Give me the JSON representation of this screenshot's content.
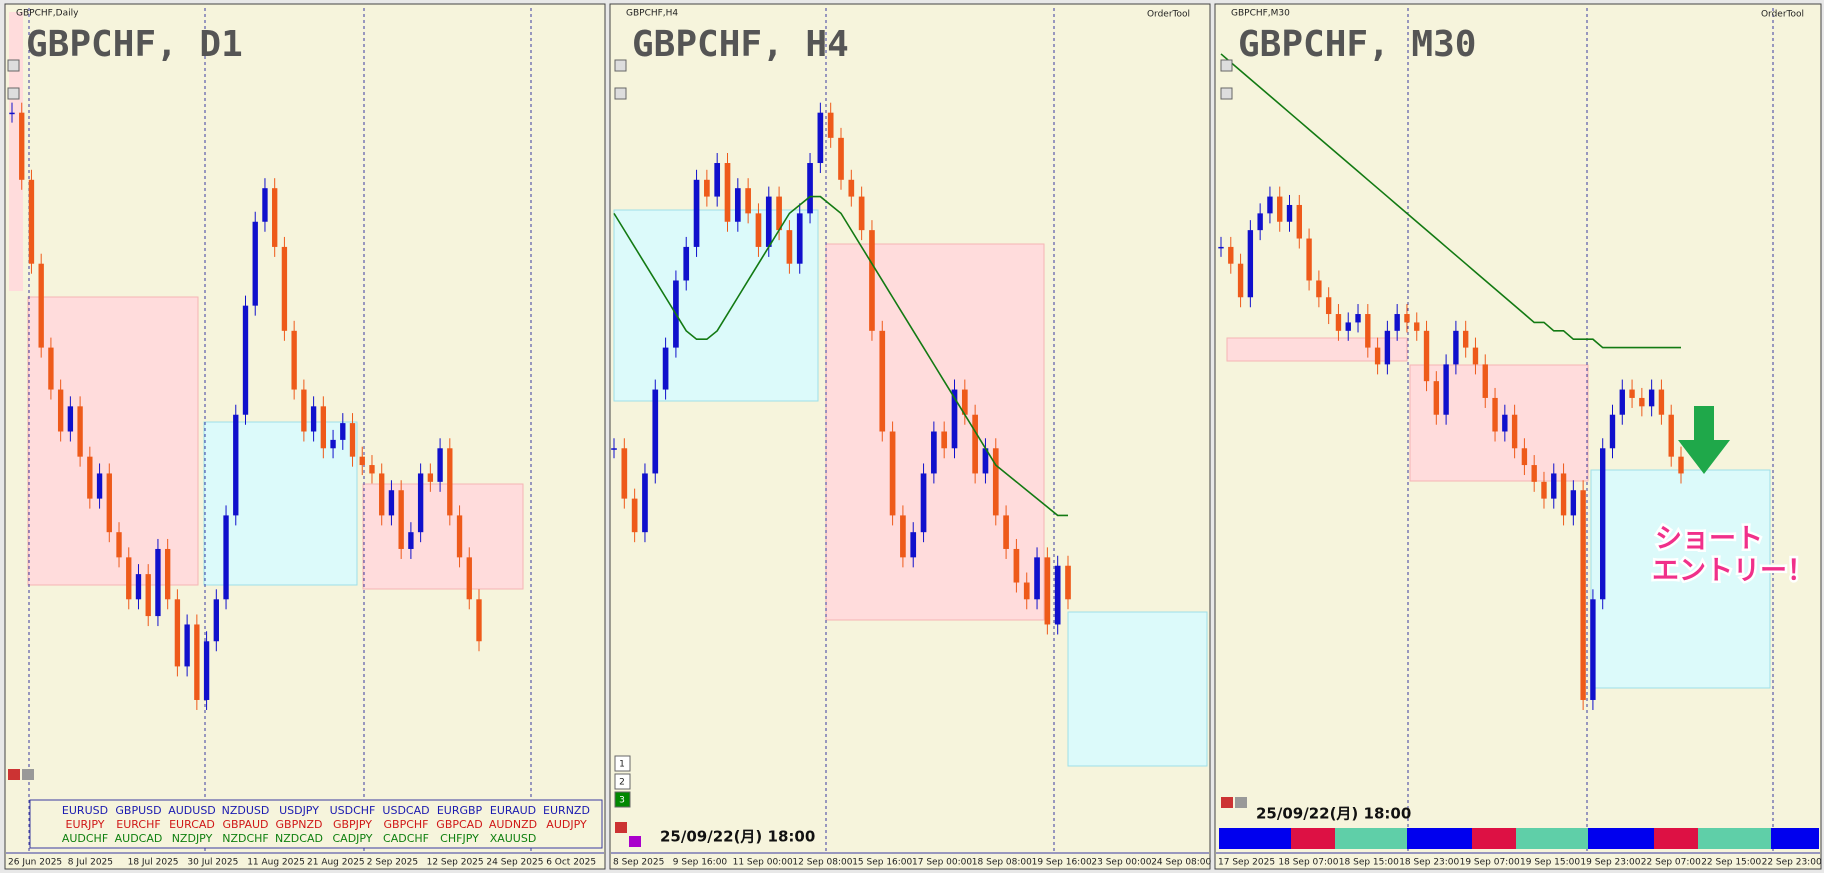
{
  "panels": [
    {
      "symbol_label": "GBPCHF,Daily",
      "chart_title": "GBPCHF, D1",
      "dates": [
        "26 Jun 2025",
        "8 Jul 2025",
        "18 Jul 2025",
        "30 Jul 2025",
        "11 Aug 2025",
        "21 Aug 2025",
        "2 Sep 2025",
        "12 Sep 2025",
        "24 Sep 2025",
        "6 Oct 2025"
      ],
      "ylim": [
        0,
        100
      ],
      "closes": [
        88,
        80,
        70,
        60,
        55,
        50,
        53,
        47,
        42,
        45,
        38,
        35,
        30,
        33,
        28,
        36,
        30,
        22,
        27,
        18,
        25,
        30,
        40,
        52,
        65,
        75,
        79,
        72,
        62,
        55,
        50,
        53,
        48,
        49,
        51,
        47,
        46,
        45,
        40,
        43,
        36,
        38,
        45,
        44,
        48,
        40,
        35,
        30,
        25
      ]
    },
    {
      "symbol_label": "GBPCHF,H4",
      "tool": "OrderTool",
      "chart_title": "GBPCHF, H4",
      "buttons": [
        "1",
        "2",
        "3"
      ],
      "timestamp": "25/09/22(月) 18:00",
      "dates": [
        "8 Sep 2025",
        "9 Sep 16:00",
        "11 Sep 00:00",
        "12 Sep 08:00",
        "15 Sep 16:00",
        "17 Sep 00:00",
        "18 Sep 08:00",
        "19 Sep 16:00",
        "23 Sep 00:00",
        "24 Sep 08:00"
      ],
      "ylim": [
        0,
        100
      ],
      "closes": [
        48,
        42,
        38,
        45,
        55,
        60,
        68,
        72,
        80,
        78,
        82,
        75,
        79,
        76,
        72,
        78,
        74,
        70,
        76,
        82,
        88,
        85,
        80,
        78,
        74,
        62,
        50,
        40,
        35,
        38,
        45,
        50,
        48,
        55,
        52,
        45,
        48,
        40,
        36,
        32,
        30,
        35,
        27,
        34,
        30
      ],
      "ma": [
        76,
        74,
        72,
        70,
        68,
        66,
        64,
        62,
        61,
        61,
        62,
        64,
        66,
        68,
        70,
        72,
        74,
        76,
        77,
        78,
        78,
        77,
        76,
        74,
        72,
        70,
        68,
        66,
        64,
        62,
        60,
        58,
        56,
        54,
        52,
        50,
        48,
        46,
        45,
        44,
        43,
        42,
        41,
        40,
        40
      ]
    },
    {
      "symbol_label": "GBPCHF,M30",
      "tool": "OrderTool",
      "chart_title": "GBPCHF, M30",
      "timestamp": "25/09/22(月) 18:00",
      "annotation": [
        "ショート",
        "エントリー！"
      ],
      "dates": [
        "17 Sep 2025",
        "18 Sep 07:00",
        "18 Sep 15:00",
        "18 Sep 23:00",
        "19 Sep 07:00",
        "19 Sep 15:00",
        "19 Sep 23:00",
        "22 Sep 07:00",
        "22 Sep 15:00",
        "22 Sep 23:00"
      ],
      "ylim": [
        0,
        100
      ],
      "closes": [
        72,
        70,
        66,
        74,
        76,
        78,
        75,
        77,
        73,
        68,
        66,
        64,
        62,
        63,
        64,
        60,
        58,
        62,
        64,
        63,
        62,
        56,
        52,
        58,
        62,
        60,
        58,
        54,
        50,
        52,
        48,
        46,
        44,
        42,
        45,
        40,
        43,
        18,
        30,
        48,
        52,
        55,
        54,
        53,
        55,
        52,
        47,
        45
      ],
      "ma": [
        95,
        94,
        93,
        92,
        91,
        90,
        89,
        88,
        87,
        86,
        85,
        84,
        83,
        82,
        81,
        80,
        79,
        78,
        77,
        76,
        75,
        74,
        73,
        72,
        71,
        70,
        69,
        68,
        67,
        66,
        65,
        64,
        63,
        63,
        62,
        62,
        61,
        61,
        61,
        60,
        60,
        60,
        60,
        60,
        60,
        60,
        60,
        60
      ]
    }
  ],
  "pairs": [
    [
      "EURUSD",
      "GBPUSD",
      "AUDUSD",
      "NZDUSD",
      "USDJPY",
      "USDCHF",
      "USDCAD",
      "EURGBP",
      "EURAUD",
      "EURNZD"
    ],
    [
      "EURJPY",
      "EURCHF",
      "EURCAD",
      "GBPAUD",
      "GBPNZD",
      "GBPJPY",
      "GBPCHF",
      "GBPCAD",
      "AUDNZD",
      "AUDJPY"
    ],
    [
      "AUDCHF",
      "AUDCAD",
      "NZDJPY",
      "NZDCHF",
      "NZDCAD",
      "CADJPY",
      "CADCHF",
      "CHFJPY",
      "XAUUSD"
    ]
  ]
}
